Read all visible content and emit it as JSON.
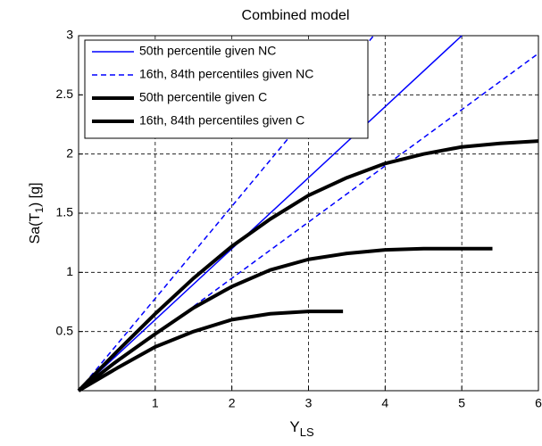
{
  "chart_data": {
    "type": "line",
    "title": "Combined model",
    "xlabel": {
      "text": "Y",
      "subscript": "LS"
    },
    "ylabel": [
      "Sa(T",
      "1",
      ") [g]"
    ],
    "xlim": [
      0,
      6
    ],
    "ylim": [
      0,
      3
    ],
    "xticks": [
      1,
      2,
      3,
      4,
      5,
      6
    ],
    "yticks": [
      0.5,
      1,
      1.5,
      2,
      2.5,
      3
    ],
    "grid": true,
    "legend": "upper-left",
    "series": [
      {
        "name": "50th percentile given NC",
        "color": "#0000ff",
        "dash": "solid",
        "width": 1.5,
        "lines": [
          {
            "x": [
              0,
              5
            ],
            "values": [
              0,
              3
            ]
          }
        ]
      },
      {
        "name": "16th, 84th percentiles given NC",
        "color": "#0000ff",
        "dash": "dashed",
        "width": 1.5,
        "lines": [
          {
            "x": [
              0,
              3.85
            ],
            "values": [
              0,
              3
            ]
          },
          {
            "x": [
              0,
              6
            ],
            "values": [
              0,
              2.85
            ]
          }
        ]
      },
      {
        "name": "50th percentile given C",
        "color": "#000000",
        "dash": "solid",
        "width": 4,
        "lines": [
          {
            "x": [
              0,
              0.5,
              1,
              1.5,
              2,
              2.5,
              3,
              3.5,
              4,
              4.5,
              5,
              5.4
            ],
            "values": [
              0,
              0.25,
              0.48,
              0.7,
              0.88,
              1.02,
              1.11,
              1.16,
              1.19,
              1.2,
              1.2,
              1.2
            ]
          }
        ]
      },
      {
        "name": "16th, 84th percentiles given C",
        "color": "#000000",
        "dash": "solid",
        "width": 4,
        "lines": [
          {
            "x": [
              0,
              0.5,
              1,
              1.5,
              2,
              2.5,
              3,
              3.5,
              4,
              4.5,
              5,
              5.5,
              6
            ],
            "values": [
              0,
              0.33,
              0.65,
              0.95,
              1.22,
              1.45,
              1.65,
              1.8,
              1.92,
              2.0,
              2.06,
              2.09,
              2.11
            ]
          },
          {
            "x": [
              0,
              0.5,
              1,
              1.5,
              2,
              2.5,
              3,
              3.45
            ],
            "values": [
              0,
              0.19,
              0.37,
              0.5,
              0.6,
              0.65,
              0.67,
              0.67
            ]
          }
        ]
      }
    ]
  }
}
